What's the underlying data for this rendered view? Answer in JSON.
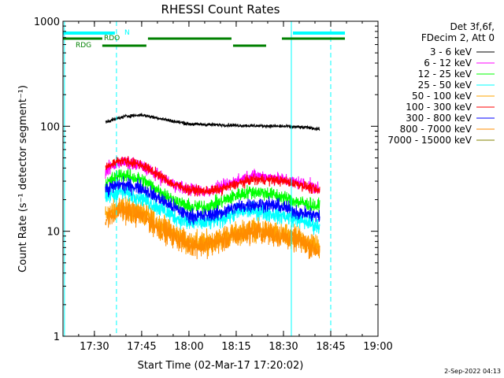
{
  "chart_data": {
    "type": "line",
    "title": "RHESSI Count Rates",
    "xlabel": "Start Time (02-Mar-17 17:20:02)",
    "ylabel": "Count Rate (s⁻¹ detector segment⁻¹)",
    "y_scale": "log",
    "ylim": [
      1,
      1000
    ],
    "xlim": [
      "17:20:02",
      "19:00:00"
    ],
    "x_ticks": [
      "17:30",
      "17:45",
      "18:00",
      "18:15",
      "18:30",
      "18:45",
      "19:00"
    ],
    "y_ticks": [
      "1",
      "10",
      "100",
      "1000"
    ],
    "legend_placement": "right",
    "legend_header": [
      "Det 3f,6f,",
      "FDecim 2, Att 0"
    ],
    "date_stamp": "2-Sep-2022 04:13",
    "data_start": "17:33:30",
    "data_end": "18:41:30",
    "series": [
      {
        "name": "3 - 6 keV",
        "color": "#000000",
        "x": [
          "17:33:30",
          "17:40",
          "17:45",
          "17:50",
          "17:55",
          "18:00",
          "18:10",
          "18:20",
          "18:30",
          "18:38",
          "18:41:30"
        ],
        "values": [
          110,
          125,
          128,
          120,
          112,
          105,
          103,
          101,
          100,
          97,
          94
        ]
      },
      {
        "name": "6 - 12 keV",
        "color": "#ff00ff",
        "x": [
          "17:33:30",
          "17:38",
          "17:45",
          "17:50",
          "17:55",
          "18:00",
          "18:05",
          "18:10",
          "18:15",
          "18:20",
          "18:25",
          "18:30",
          "18:35",
          "18:41:30"
        ],
        "values": [
          38,
          46,
          42,
          34,
          28,
          25,
          24,
          26,
          30,
          34,
          33,
          31,
          29,
          25
        ]
      },
      {
        "name": "12 - 25 keV",
        "color": "#00ff00",
        "x": [
          "17:33:30",
          "17:38",
          "17:45",
          "17:50",
          "17:55",
          "18:00",
          "18:05",
          "18:10",
          "18:15",
          "18:20",
          "18:25",
          "18:30",
          "18:35",
          "18:41:30"
        ],
        "values": [
          28,
          35,
          31,
          25,
          20,
          17,
          17,
          19,
          22,
          24,
          23,
          21,
          19,
          17
        ]
      },
      {
        "name": "25 - 50 keV",
        "color": "#00ffff",
        "x": [
          "17:33:30",
          "17:38",
          "17:45",
          "17:50",
          "17:55",
          "18:00",
          "18:05",
          "18:10",
          "18:15",
          "18:20",
          "18:25",
          "18:30",
          "18:35",
          "18:41:30"
        ],
        "values": [
          21,
          24,
          21,
          17,
          14,
          12,
          12,
          13,
          15,
          16,
          15,
          14,
          13,
          11
        ]
      },
      {
        "name": "50 - 100 keV",
        "color": "#ffa500",
        "x": [
          "17:33:30",
          "17:38",
          "17:45",
          "17:50",
          "17:55",
          "18:00",
          "18:05",
          "18:10",
          "18:15",
          "18:20",
          "18:25",
          "18:30",
          "18:35",
          "18:41:30"
        ],
        "values": [
          14,
          17,
          15,
          12,
          9.5,
          8,
          7.8,
          8.5,
          9.5,
          10.5,
          10,
          9,
          8.5,
          7
        ]
      },
      {
        "name": "100 - 300 keV",
        "color": "#ff0000",
        "x": [
          "17:33:30",
          "17:38",
          "17:45",
          "17:50",
          "17:55",
          "18:00",
          "18:05",
          "18:10",
          "18:15",
          "18:20",
          "18:25",
          "18:30",
          "18:35",
          "18:41:30"
        ],
        "values": [
          40,
          48,
          43,
          35,
          28,
          25,
          24,
          25,
          28,
          31,
          31,
          30,
          28,
          24
        ]
      },
      {
        "name": "300 - 800 keV",
        "color": "#0000ff",
        "x": [
          "17:33:30",
          "17:38",
          "17:45",
          "17:50",
          "17:55",
          "18:00",
          "18:05",
          "18:10",
          "18:15",
          "18:20",
          "18:25",
          "18:30",
          "18:35",
          "18:41:30"
        ],
        "values": [
          25,
          28,
          26,
          21,
          17,
          14,
          14,
          15,
          17,
          18,
          18,
          17,
          15,
          14
        ]
      },
      {
        "name": "800 - 7000 keV",
        "color": "#ff8c00",
        "x": [
          "17:33:30",
          "17:38",
          "17:45",
          "17:50",
          "17:55",
          "18:00",
          "18:05",
          "18:10",
          "18:15",
          "18:20",
          "18:25",
          "18:30",
          "18:35",
          "18:41:30"
        ],
        "values": [
          13,
          16,
          14,
          11,
          9,
          7.5,
          7.3,
          8,
          9,
          10,
          9.5,
          8.8,
          8,
          6.5
        ]
      },
      {
        "name": "7000 - 15000 keV",
        "color": "#808000",
        "x": [],
        "values": []
      }
    ],
    "flags": [
      {
        "name": "N",
        "color": "#00ffff",
        "bars": [
          [
            "17:20:02",
            "17:36:30"
          ],
          [
            "18:33:00",
            "18:49:30"
          ]
        ]
      },
      {
        "name": "RDO",
        "color": "#008000",
        "bars": [
          [
            "17:20:02",
            "17:32:30"
          ],
          [
            "17:47:00",
            "18:13:30"
          ],
          [
            "18:29:30",
            "18:49:30"
          ]
        ]
      },
      {
        "name": "RDG",
        "color": "#008000",
        "bars": [
          [
            "17:32:30",
            "17:46:30"
          ],
          [
            "18:14:00",
            "18:24:30"
          ]
        ]
      }
    ],
    "vlines": [
      {
        "x": "17:20:30",
        "color": "#00ffff",
        "style": "solid"
      },
      {
        "x": "17:37:00",
        "color": "#00ffff",
        "style": "dashed"
      },
      {
        "x": "18:32:30",
        "color": "#00ffff",
        "style": "solid"
      },
      {
        "x": "18:45:00",
        "color": "#00ffff",
        "style": "dashed"
      }
    ]
  }
}
